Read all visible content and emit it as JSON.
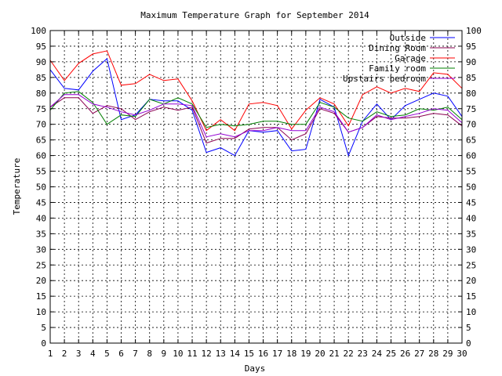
{
  "chart_data": {
    "type": "line",
    "title": "Maximum Temperature Graph for September 2014",
    "xlabel": "Days",
    "ylabel": "Temperature",
    "xlim": [
      1,
      30
    ],
    "ylim": [
      0,
      100
    ],
    "grid": true,
    "legend_position": "top-right",
    "x": [
      1,
      2,
      3,
      4,
      5,
      6,
      7,
      8,
      9,
      10,
      11,
      12,
      13,
      14,
      15,
      16,
      17,
      18,
      19,
      20,
      21,
      22,
      23,
      24,
      25,
      26,
      27,
      28,
      29,
      30
    ],
    "series": [
      {
        "name": "Outside",
        "color": "#0000ff",
        "values": [
          87.5,
          81.5,
          81,
          87,
          91,
          71.5,
          73,
          78,
          77.5,
          77.5,
          74.5,
          61,
          62.5,
          60,
          68,
          67.5,
          68,
          61.5,
          62,
          78,
          75.5,
          60,
          71,
          76.5,
          71.5,
          76,
          78,
          80,
          79,
          72.5
        ]
      },
      {
        "name": "Dining Room",
        "color": "#8b0051",
        "values": [
          75.5,
          78.5,
          78.5,
          73.5,
          76,
          75,
          71.5,
          74,
          75.5,
          74.5,
          75.5,
          64,
          65.5,
          65.5,
          68.5,
          69,
          69,
          65,
          67,
          75,
          73.5,
          67.5,
          69,
          72.5,
          72,
          72,
          72.5,
          73.5,
          73,
          69.5
        ]
      },
      {
        "name": "Garage",
        "color": "#ff0000",
        "values": [
          90.5,
          84,
          89.5,
          92.5,
          93.5,
          82.5,
          83,
          86,
          84,
          84.5,
          77.5,
          68,
          71.5,
          68,
          76.5,
          77,
          76,
          68.5,
          74.5,
          78.5,
          76.5,
          69.5,
          79.5,
          82,
          80,
          81.5,
          80.5,
          86.5,
          86,
          81.5
        ]
      },
      {
        "name": "Family room",
        "color": "#007f00",
        "values": [
          74.5,
          80,
          80.5,
          77,
          70,
          73,
          72.5,
          78,
          76.5,
          78.5,
          76.5,
          69,
          70,
          69.5,
          70,
          71,
          71,
          70,
          70,
          77,
          75.5,
          72,
          71,
          74,
          72.5,
          73,
          75,
          74.5,
          75.5,
          71.5
        ]
      },
      {
        "name": "Upstairs bedroom",
        "color": "#9400d3",
        "values": [
          75.5,
          79.5,
          79.5,
          76.5,
          75.5,
          74,
          73,
          74.5,
          76.5,
          76.5,
          76,
          66,
          67,
          66,
          68,
          68,
          69,
          68,
          68,
          75.5,
          74,
          67.5,
          69,
          73,
          71.5,
          72.5,
          73.5,
          75,
          74.5,
          70.5
        ]
      }
    ],
    "yticks": [
      "0",
      "5",
      "10",
      "15",
      "20",
      "25",
      "30",
      "35",
      "40",
      "45",
      "50",
      "55",
      "60",
      "65",
      "70",
      "75",
      "80",
      "85",
      "90",
      "95",
      "100"
    ],
    "xticks": [
      "1",
      "2",
      "3",
      "4",
      "5",
      "6",
      "7",
      "8",
      "9",
      "10",
      "11",
      "12",
      "13",
      "14",
      "15",
      "16",
      "17",
      "18",
      "19",
      "20",
      "21",
      "22",
      "23",
      "24",
      "25",
      "26",
      "27",
      "28",
      "29",
      "30"
    ]
  }
}
